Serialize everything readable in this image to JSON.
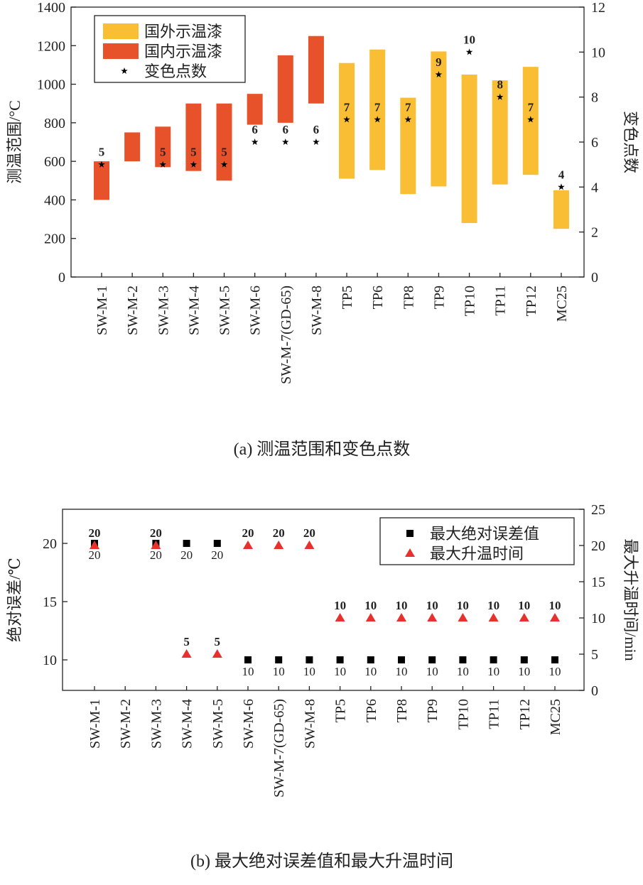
{
  "chart_data": [
    {
      "type": "range_bar",
      "title": "(a) 测温范围和变色点数",
      "ylabel": "测温范围/°C",
      "y2label": "变色点数",
      "categories": [
        "SW-M-1",
        "SW-M-2",
        "SW-M-3",
        "SW-M-4",
        "SW-M-5",
        "SW-M-6",
        "SW-M-7(GD-65)",
        "SW-M-8",
        "TP5",
        "TP6",
        "TP8",
        "TP9",
        "TP10",
        "TP11",
        "TP12",
        "MC25"
      ],
      "ylim": [
        0,
        1400
      ],
      "yticks": [
        0,
        200,
        400,
        600,
        800,
        1000,
        1200,
        1400
      ],
      "y2lim": [
        0,
        12
      ],
      "y2ticks": [
        0,
        2,
        4,
        6,
        8,
        10,
        12
      ],
      "legend": "upper left",
      "series": [
        {
          "name": "国外示温漆",
          "color": "#f9be33",
          "low": [
            null,
            null,
            null,
            null,
            null,
            null,
            null,
            null,
            510,
            555,
            430,
            470,
            280,
            480,
            530,
            250
          ],
          "high": [
            null,
            null,
            null,
            null,
            null,
            null,
            null,
            null,
            1110,
            1180,
            930,
            1170,
            1050,
            1020,
            1090,
            450
          ]
        },
        {
          "name": "国内示温漆",
          "color": "#e8522a",
          "low": [
            400,
            600,
            570,
            550,
            500,
            790,
            800,
            900,
            null,
            null,
            null,
            null,
            null,
            null,
            null,
            null
          ],
          "high": [
            600,
            750,
            780,
            900,
            900,
            950,
            1150,
            1250,
            null,
            null,
            null,
            null,
            null,
            null,
            null,
            null
          ]
        },
        {
          "name": "变色点数",
          "color": "#000000",
          "marker": "star",
          "axis": "y2",
          "label_position": "above",
          "values": [
            5,
            null,
            5,
            5,
            5,
            6,
            6,
            6,
            7,
            7,
            7,
            9,
            10,
            8,
            7,
            4
          ]
        }
      ]
    },
    {
      "type": "scatter",
      "title": "(b) 最大绝对误差值和最大升温时间",
      "ylabel": "绝对误差/℃",
      "y2label": "最大升温时间/min",
      "categories": [
        "SW-M-1",
        "SW-M-2",
        "SW-M-3",
        "SW-M-4",
        "SW-M-5",
        "SW-M-6",
        "SW-M-7(GD-65)",
        "SW-M-8",
        "TP5",
        "TP6",
        "TP8",
        "TP9",
        "TP10",
        "TP11",
        "TP12",
        "MC25"
      ],
      "ylim": [
        7.38,
        22.93
      ],
      "yticks": [
        10,
        15,
        20
      ],
      "y2lim": [
        0,
        25
      ],
      "y2ticks": [
        0,
        5,
        10,
        15,
        20,
        25
      ],
      "legend": "upper right",
      "series": [
        {
          "name": "最大绝对误差值",
          "color": "#000000",
          "marker": "square",
          "label_position": "below",
          "values": [
            20,
            null,
            20,
            20,
            20,
            10,
            10,
            10,
            10,
            10,
            10,
            10,
            10,
            10,
            10,
            10
          ]
        },
        {
          "name": "最大升温时间",
          "color": "#e8302f",
          "marker": "triangle",
          "axis": "y2",
          "label_position": "above",
          "values": [
            20,
            null,
            20,
            5,
            5,
            20,
            20,
            20,
            10,
            10,
            10,
            10,
            10,
            10,
            10,
            10
          ]
        }
      ]
    }
  ]
}
